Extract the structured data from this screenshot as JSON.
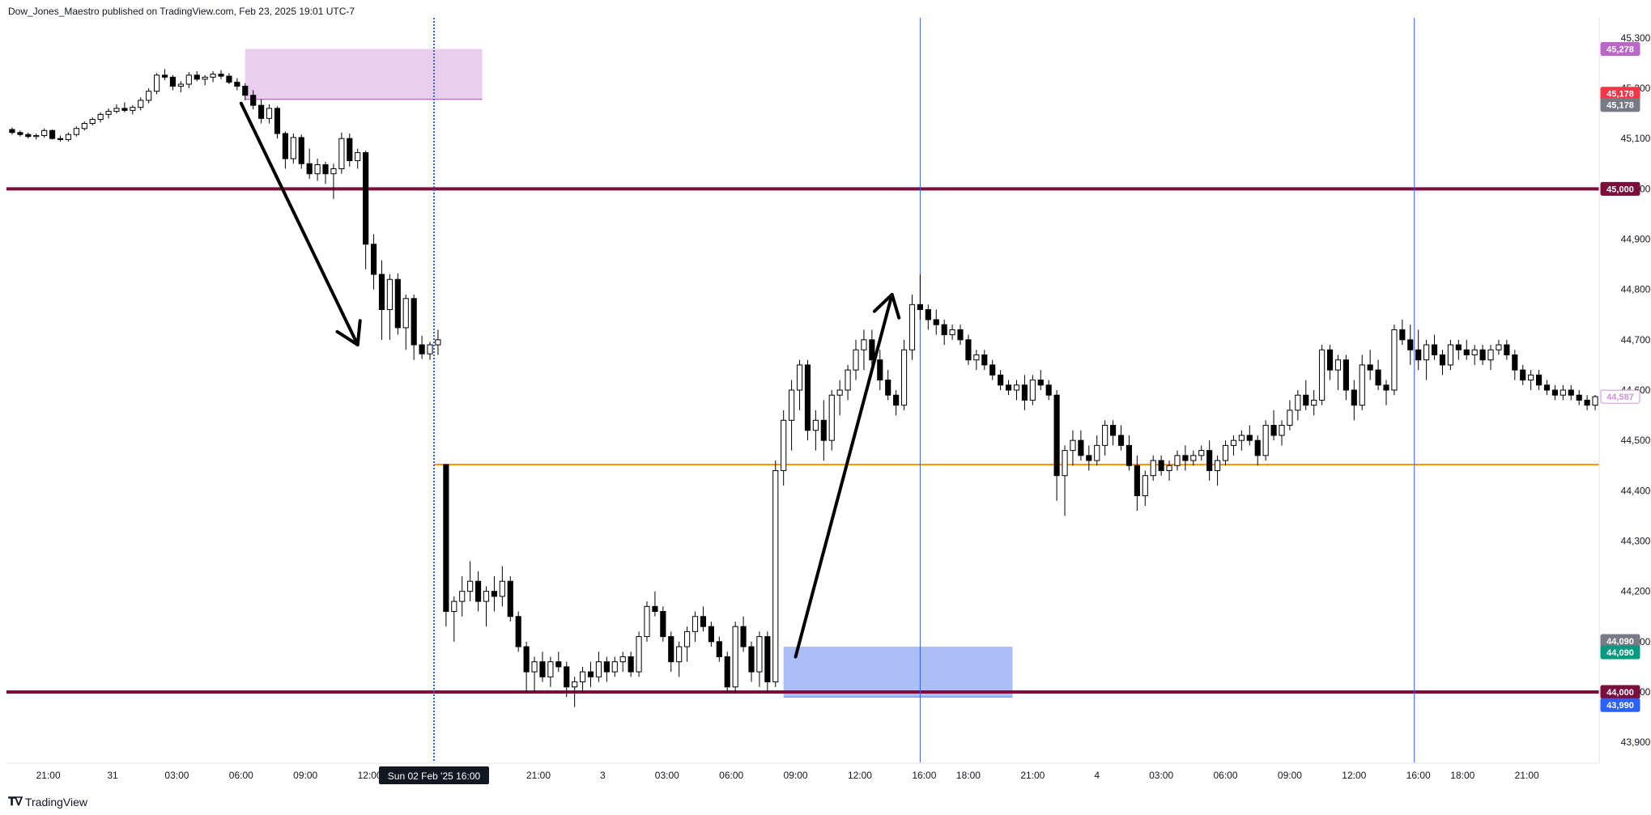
{
  "header": {
    "text": "Dow_Jones_Maestro published on TradingView.com, Feb 23, 2025 19:01 UTC-7"
  },
  "footer": {
    "brand": "TradingView",
    "logo_icon": "tradingview-logo-icon"
  },
  "colors": {
    "bull_body": "#ffffff",
    "bear_body": "#000000",
    "wick": "#000000",
    "level_line": "#7b0f3c",
    "orange_line": "#ff9800",
    "vline": "#2962ff",
    "pink_zone": "#e1bee7",
    "blue_zone": "#90a8f5",
    "arrow": "#000000"
  },
  "chart_data": {
    "type": "candlestick",
    "ylim": [
      43860,
      45340
    ],
    "yticks": [
      43900,
      44000,
      44100,
      44200,
      44300,
      44400,
      44500,
      44600,
      44700,
      44800,
      44900,
      45000,
      45100,
      45200,
      45300
    ],
    "ytick_labels": [
      "43,900",
      "44,000",
      "44,100",
      "44,200",
      "44,300",
      "44,400",
      "44,500",
      "44,600",
      "44,700",
      "44,800",
      "44,900",
      "45,000",
      "45,100",
      "45,200",
      "45,300"
    ],
    "xlim": [
      0,
      198
    ],
    "xticks": [
      {
        "x": 5,
        "label": "21:00"
      },
      {
        "x": 13,
        "label": "31"
      },
      {
        "x": 21,
        "label": "03:00"
      },
      {
        "x": 29,
        "label": "06:00"
      },
      {
        "x": 37,
        "label": "09:00"
      },
      {
        "x": 45,
        "label": "12:00"
      },
      {
        "x": 66,
        "label": "21:00"
      },
      {
        "x": 74,
        "label": "3"
      },
      {
        "x": 82,
        "label": "03:00"
      },
      {
        "x": 90,
        "label": "06:00"
      },
      {
        "x": 98,
        "label": "09:00"
      },
      {
        "x": 106,
        "label": "12:00"
      },
      {
        "x": 114,
        "label": "16:00"
      },
      {
        "x": 119.5,
        "label": "18:00"
      },
      {
        "x": 127.5,
        "label": "21:00"
      },
      {
        "x": 135.5,
        "label": "4"
      },
      {
        "x": 143.5,
        "label": "03:00"
      },
      {
        "x": 151.5,
        "label": "06:00"
      },
      {
        "x": 159.5,
        "label": "09:00"
      },
      {
        "x": 167.5,
        "label": "12:00"
      },
      {
        "x": 175.5,
        "label": "16:00"
      },
      {
        "x": 181,
        "label": "18:00"
      },
      {
        "x": 189,
        "label": "21:00"
      }
    ],
    "highlight_xlabel": {
      "x": 53,
      "label": "Sun 02 Feb '25   16:00"
    },
    "candles": [
      [
        45118,
        45122,
        45108,
        45112
      ],
      [
        45112,
        45116,
        45104,
        45108
      ],
      [
        45108,
        45112,
        45100,
        45104
      ],
      [
        45104,
        45110,
        45098,
        45106
      ],
      [
        45106,
        45120,
        45102,
        45116
      ],
      [
        45116,
        45118,
        45098,
        45100
      ],
      [
        45100,
        45106,
        45094,
        45098
      ],
      [
        45098,
        45112,
        45094,
        45108
      ],
      [
        45108,
        45124,
        45104,
        45120
      ],
      [
        45120,
        45134,
        45116,
        45130
      ],
      [
        45130,
        45142,
        45126,
        45138
      ],
      [
        45138,
        45152,
        45132,
        45148
      ],
      [
        45148,
        45160,
        45140,
        45154
      ],
      [
        45154,
        45168,
        45150,
        45160
      ],
      [
        45160,
        45172,
        45152,
        45156
      ],
      [
        45156,
        45166,
        45148,
        45162
      ],
      [
        45162,
        45182,
        45156,
        45176
      ],
      [
        45176,
        45200,
        45170,
        45194
      ],
      [
        45194,
        45230,
        45188,
        45226
      ],
      [
        45226,
        45238,
        45216,
        45222
      ],
      [
        45222,
        45226,
        45196,
        45204
      ],
      [
        45204,
        45214,
        45192,
        45208
      ],
      [
        45208,
        45232,
        45200,
        45226
      ],
      [
        45226,
        45234,
        45214,
        45218
      ],
      [
        45218,
        45226,
        45206,
        45222
      ],
      [
        45222,
        45234,
        45212,
        45228
      ],
      [
        45228,
        45236,
        45218,
        45224
      ],
      [
        45224,
        45230,
        45208,
        45212
      ],
      [
        45212,
        45220,
        45196,
        45204
      ],
      [
        45204,
        45210,
        45176,
        45186
      ],
      [
        45186,
        45196,
        45158,
        45166
      ],
      [
        45166,
        45178,
        45130,
        45140
      ],
      [
        45140,
        45168,
        45130,
        45160
      ],
      [
        45160,
        45164,
        45100,
        45110
      ],
      [
        45110,
        45114,
        45040,
        45060
      ],
      [
        45060,
        45110,
        45050,
        45102
      ],
      [
        45102,
        45108,
        45040,
        45050
      ],
      [
        45050,
        45080,
        45020,
        45030
      ],
      [
        45030,
        45060,
        45016,
        45048
      ],
      [
        45048,
        45054,
        45010,
        45030
      ],
      [
        45030,
        45050,
        44980,
        45040
      ],
      [
        45040,
        45112,
        45030,
        45100
      ],
      [
        45100,
        45110,
        45044,
        45056
      ],
      [
        45056,
        45080,
        45040,
        45072
      ],
      [
        45072,
        45076,
        44840,
        44890
      ],
      [
        44890,
        44910,
        44800,
        44830
      ],
      [
        44830,
        44858,
        44700,
        44760
      ],
      [
        44760,
        44830,
        44700,
        44820
      ],
      [
        44820,
        44832,
        44710,
        44724
      ],
      [
        44724,
        44790,
        44680,
        44782
      ],
      [
        44782,
        44790,
        44660,
        44690
      ],
      [
        44690,
        44708,
        44662,
        44672
      ],
      [
        44672,
        44696,
        44660,
        44690
      ],
      [
        44690,
        44720,
        44670,
        44700
      ],
      [
        44452,
        44452,
        44130,
        44160
      ],
      [
        44160,
        44190,
        44100,
        44180
      ],
      [
        44180,
        44230,
        44150,
        44200
      ],
      [
        44200,
        44260,
        44180,
        44220
      ],
      [
        44220,
        44240,
        44160,
        44180
      ],
      [
        44180,
        44210,
        44130,
        44200
      ],
      [
        44200,
        44230,
        44160,
        44190
      ],
      [
        44190,
        44250,
        44170,
        44220
      ],
      [
        44220,
        44230,
        44140,
        44150
      ],
      [
        44150,
        44160,
        44080,
        44090
      ],
      [
        44090,
        44100,
        44000,
        44040
      ],
      [
        44040,
        44070,
        44000,
        44060
      ],
      [
        44060,
        44080,
        44020,
        44030
      ],
      [
        44030,
        44070,
        44010,
        44060
      ],
      [
        44060,
        44080,
        44040,
        44050
      ],
      [
        44050,
        44060,
        43990,
        44010
      ],
      [
        44010,
        44030,
        43970,
        44020
      ],
      [
        44020,
        44050,
        44000,
        44040
      ],
      [
        44040,
        44060,
        44010,
        44030
      ],
      [
        44030,
        44080,
        44020,
        44060
      ],
      [
        44060,
        44070,
        44020,
        44040
      ],
      [
        44040,
        44070,
        44030,
        44060
      ],
      [
        44060,
        44080,
        44040,
        44070
      ],
      [
        44070,
        44080,
        44030,
        44040
      ],
      [
        44040,
        44120,
        44030,
        44110
      ],
      [
        44110,
        44180,
        44100,
        44170
      ],
      [
        44170,
        44200,
        44150,
        44160
      ],
      [
        44160,
        44170,
        44100,
        44110
      ],
      [
        44110,
        44120,
        44040,
        44060
      ],
      [
        44060,
        44100,
        44030,
        44090
      ],
      [
        44090,
        44130,
        44060,
        44120
      ],
      [
        44120,
        44160,
        44100,
        44150
      ],
      [
        44150,
        44170,
        44120,
        44130
      ],
      [
        44130,
        44140,
        44090,
        44100
      ],
      [
        44100,
        44110,
        44060,
        44070
      ],
      [
        44070,
        44080,
        44000,
        44010
      ],
      [
        44010,
        44140,
        44000,
        44130
      ],
      [
        44130,
        44150,
        44080,
        44090
      ],
      [
        44090,
        44100,
        44020,
        44040
      ],
      [
        44040,
        44120,
        44010,
        44110
      ],
      [
        44110,
        44120,
        44000,
        44020
      ],
      [
        44020,
        44460,
        44010,
        44440
      ],
      [
        44440,
        44560,
        44410,
        44540
      ],
      [
        44540,
        44620,
        44480,
        44600
      ],
      [
        44600,
        44660,
        44560,
        44650
      ],
      [
        44650,
        44660,
        44500,
        44520
      ],
      [
        44520,
        44560,
        44480,
        44540
      ],
      [
        44540,
        44580,
        44460,
        44500
      ],
      [
        44500,
        44600,
        44480,
        44590
      ],
      [
        44590,
        44620,
        44550,
        44600
      ],
      [
        44600,
        44650,
        44580,
        44640
      ],
      [
        44640,
        44700,
        44620,
        44680
      ],
      [
        44680,
        44720,
        44640,
        44700
      ],
      [
        44700,
        44720,
        44640,
        44660
      ],
      [
        44660,
        44680,
        44600,
        44620
      ],
      [
        44620,
        44640,
        44580,
        44590
      ],
      [
        44590,
        44600,
        44550,
        44570
      ],
      [
        44570,
        44700,
        44560,
        44680
      ],
      [
        44680,
        44790,
        44660,
        44770
      ],
      [
        44770,
        44830,
        44740,
        44760
      ],
      [
        44760,
        44770,
        44720,
        44740
      ],
      [
        44740,
        44760,
        44710,
        44730
      ],
      [
        44730,
        44740,
        44690,
        44710
      ],
      [
        44710,
        44730,
        44700,
        44720
      ],
      [
        44720,
        44730,
        44690,
        44700
      ],
      [
        44700,
        44710,
        44650,
        44660
      ],
      [
        44660,
        44680,
        44640,
        44670
      ],
      [
        44670,
        44680,
        44640,
        44650
      ],
      [
        44650,
        44660,
        44620,
        44630
      ],
      [
        44630,
        44640,
        44600,
        44610
      ],
      [
        44610,
        44620,
        44590,
        44600
      ],
      [
        44600,
        44620,
        44580,
        44610
      ],
      [
        44610,
        44630,
        44560,
        44580
      ],
      [
        44580,
        44630,
        44570,
        44620
      ],
      [
        44620,
        44640,
        44600,
        44610
      ],
      [
        44610,
        44620,
        44580,
        44590
      ],
      [
        44590,
        44600,
        44380,
        44430
      ],
      [
        44430,
        44490,
        44350,
        44480
      ],
      [
        44480,
        44520,
        44450,
        44500
      ],
      [
        44500,
        44520,
        44460,
        44470
      ],
      [
        44470,
        44490,
        44440,
        44460
      ],
      [
        44460,
        44510,
        44450,
        44490
      ],
      [
        44490,
        44540,
        44470,
        44530
      ],
      [
        44530,
        44540,
        44490,
        44510
      ],
      [
        44510,
        44530,
        44480,
        44490
      ],
      [
        44490,
        44510,
        44440,
        44450
      ],
      [
        44450,
        44470,
        44360,
        44390
      ],
      [
        44390,
        44440,
        44370,
        44430
      ],
      [
        44430,
        44470,
        44420,
        44460
      ],
      [
        44460,
        44470,
        44430,
        44440
      ],
      [
        44440,
        44460,
        44420,
        44450
      ],
      [
        44450,
        44480,
        44440,
        44470
      ],
      [
        44470,
        44490,
        44440,
        44460
      ],
      [
        44460,
        44480,
        44450,
        44470
      ],
      [
        44470,
        44490,
        44460,
        44480
      ],
      [
        44480,
        44500,
        44420,
        44440
      ],
      [
        44440,
        44470,
        44410,
        44460
      ],
      [
        44460,
        44500,
        44450,
        44490
      ],
      [
        44490,
        44510,
        44470,
        44500
      ],
      [
        44500,
        44520,
        44480,
        44510
      ],
      [
        44510,
        44530,
        44490,
        44500
      ],
      [
        44500,
        44510,
        44450,
        44470
      ],
      [
        44470,
        44540,
        44460,
        44530
      ],
      [
        44530,
        44560,
        44500,
        44510
      ],
      [
        44510,
        44540,
        44490,
        44530
      ],
      [
        44530,
        44580,
        44520,
        44560
      ],
      [
        44560,
        44600,
        44540,
        44590
      ],
      [
        44590,
        44620,
        44560,
        44570
      ],
      [
        44570,
        44600,
        44550,
        44580
      ],
      [
        44580,
        44690,
        44570,
        44680
      ],
      [
        44680,
        44690,
        44620,
        44640
      ],
      [
        44640,
        44670,
        44600,
        44660
      ],
      [
        44660,
        44670,
        44580,
        44600
      ],
      [
        44600,
        44620,
        44540,
        44570
      ],
      [
        44570,
        44670,
        44560,
        44650
      ],
      [
        44650,
        44680,
        44620,
        44640
      ],
      [
        44640,
        44660,
        44600,
        44610
      ],
      [
        44610,
        44620,
        44570,
        44600
      ],
      [
        44600,
        44730,
        44590,
        44720
      ],
      [
        44720,
        44740,
        44690,
        44700
      ],
      [
        44700,
        44730,
        44650,
        44680
      ],
      [
        44680,
        44720,
        44640,
        44660
      ],
      [
        44660,
        44700,
        44620,
        44690
      ],
      [
        44690,
        44710,
        44660,
        44670
      ],
      [
        44670,
        44680,
        44630,
        44650
      ],
      [
        44650,
        44700,
        44640,
        44690
      ],
      [
        44690,
        44700,
        44660,
        44680
      ],
      [
        44680,
        44700,
        44660,
        44670
      ],
      [
        44670,
        44690,
        44650,
        44680
      ],
      [
        44680,
        44690,
        44650,
        44660
      ],
      [
        44660,
        44690,
        44640,
        44680
      ],
      [
        44680,
        44700,
        44670,
        44690
      ],
      [
        44690,
        44700,
        44660,
        44670
      ],
      [
        44670,
        44680,
        44620,
        44640
      ],
      [
        44640,
        44650,
        44610,
        44620
      ],
      [
        44620,
        44640,
        44600,
        44630
      ],
      [
        44630,
        44640,
        44600,
        44610
      ],
      [
        44610,
        44620,
        44590,
        44600
      ],
      [
        44600,
        44610,
        44580,
        44590
      ],
      [
        44590,
        44610,
        44580,
        44600
      ],
      [
        44600,
        44610,
        44580,
        44590
      ],
      [
        44590,
        44600,
        44570,
        44580
      ],
      [
        44580,
        44590,
        44560,
        44570
      ],
      [
        44570,
        44590,
        44560,
        44587
      ]
    ],
    "horizontal_levels": [
      {
        "value": 45000,
        "label": "45,000",
        "color": "#7b0f3c",
        "width": 4
      },
      {
        "value": 44000,
        "label": "44,000",
        "color": "#7b0f3c",
        "width": 4
      },
      {
        "value": 44452,
        "label": "",
        "color": "#ff9800",
        "width": 2,
        "x_from": 53
      }
    ],
    "vertical_lines": [
      {
        "x": 53,
        "style": "dotted"
      },
      {
        "x": 113.5,
        "style": "solid"
      },
      {
        "x": 175,
        "style": "solid"
      }
    ],
    "zones": [
      {
        "x_from": 29.5,
        "x_to": 59,
        "y_from": 45178,
        "y_to": 45278,
        "color": "#e1bee7"
      },
      {
        "x_from": 96.5,
        "x_to": 125,
        "y_from": 43990,
        "y_to": 44090,
        "color": "#90a8f5"
      }
    ],
    "arrows": [
      {
        "x1": 29,
        "y1": 45170,
        "x2": 43.5,
        "y2": 44690
      },
      {
        "x1": 98,
        "y1": 44070,
        "x2": 110,
        "y2": 44790
      }
    ],
    "price_labels": [
      {
        "value": 45278,
        "label": "45,278",
        "bg": "#ba68c8",
        "fg": "#ffffff"
      },
      {
        "value": 45178,
        "label": "45,178",
        "bg": "#f23645",
        "fg": "#ffffff",
        "offset": -7
      },
      {
        "value": 45178,
        "label": "45,178",
        "bg": "#787b86",
        "fg": "#ffffff",
        "offset": 7
      },
      {
        "value": 45000,
        "label": "45,000",
        "bg": "#7b0f3c",
        "fg": "#ffffff"
      },
      {
        "value": 44587,
        "label": "44,587",
        "bg": "#ffffff",
        "fg": "#ce93d8",
        "border": "#ce93d8"
      },
      {
        "value": 44090,
        "label": "44,090",
        "bg": "#787b86",
        "fg": "#ffffff",
        "offset": -7
      },
      {
        "value": 44090,
        "label": "44,090",
        "bg": "#089981",
        "fg": "#ffffff",
        "offset": 7
      },
      {
        "value": 44000,
        "label": "44,000",
        "bg": "#7b0f3c",
        "fg": "#ffffff"
      },
      {
        "value": 43990,
        "label": "43,990",
        "bg": "#2962ff",
        "fg": "#ffffff",
        "offset": 10
      }
    ]
  }
}
